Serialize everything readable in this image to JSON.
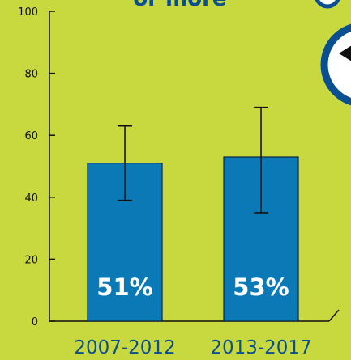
{
  "header": {
    "title_fragment": "or more"
  },
  "colors": {
    "background": "#c8d940",
    "bar": "#0a79b6",
    "bar_outline": "#0a2540",
    "axis": "#111111",
    "category_text": "#0a4f8f",
    "badge_ring": "#0a4f8f"
  },
  "badge": {
    "icon": "back-arrow-icon"
  },
  "chart_data": {
    "type": "bar",
    "categories": [
      "2007-2012",
      "2013-2017"
    ],
    "values": [
      51,
      53
    ],
    "value_labels": [
      "51%",
      "53%"
    ],
    "error_bars": [
      {
        "low": 39,
        "high": 63
      },
      {
        "low": 35,
        "high": 69
      }
    ],
    "ylim": [
      0,
      100
    ],
    "yticks": [
      0,
      20,
      40,
      60,
      80,
      100
    ],
    "grid": false,
    "xlabel": "",
    "ylabel": ""
  }
}
